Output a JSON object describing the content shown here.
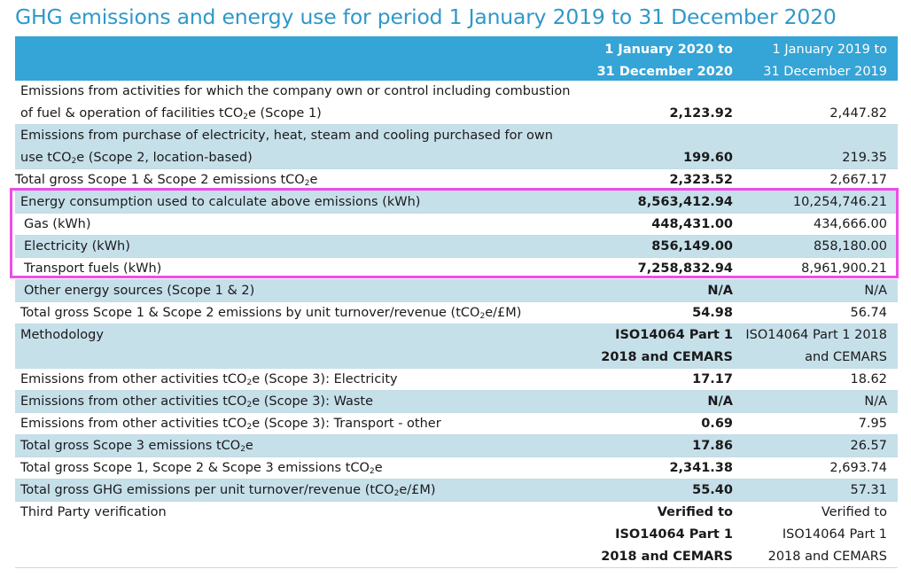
{
  "title": "GHG emissions and energy use for period 1 January 2019 to 31 December 2020",
  "columns": {
    "col2020_line1": "1 January 2020 to",
    "col2020_line2": "31 December 2020",
    "col2019_line1": "1 January 2019 to",
    "col2019_line2": "31 December 2019"
  },
  "rows": [
    {
      "line1": "Emissions from activities for which the company own or control including combustion",
      "line2_pre": "of fuel & operation of facilities tCO",
      "line2_sub": "2",
      "line2_post": "e (Scope 1)",
      "v2020": "2,123.92",
      "v2019": "2,447.82"
    },
    {
      "line1": "Emissions from purchase of electricity, heat, steam and cooling purchased for own",
      "line2_pre": "use tCO",
      "line2_sub": "2",
      "line2_post": "e (Scope 2, location-based)",
      "v2020": "199.60",
      "v2019": "219.35"
    },
    {
      "pre": "Total gross Scope 1 & Scope 2 emissions tCO",
      "sub": "2",
      "post": "e",
      "v2020": "2,323.52",
      "v2019": "2,667.17"
    },
    {
      "label": "Energy consumption used to calculate above emissions (kWh)",
      "v2020": "8,563,412.94",
      "v2019": "10,254,746.21"
    },
    {
      "label": "Gas (kWh)",
      "v2020": "448,431.00",
      "v2019": "434,666.00"
    },
    {
      "label": "Electricity (kWh)",
      "v2020": "856,149.00",
      "v2019": "858,180.00"
    },
    {
      "label": "Transport fuels (kWh)",
      "v2020": "7,258,832.94",
      "v2019": "8,961,900.21"
    },
    {
      "label": "Other energy sources (Scope 1 & 2)",
      "v2020": "N/A",
      "v2019": "N/A"
    },
    {
      "pre": "Total gross Scope 1 & Scope 2 emissions by unit turnover/revenue (tCO",
      "sub": "2",
      "post": "e/£M)",
      "v2020": "54.98",
      "v2019": "56.74"
    },
    {
      "label": "Methodology",
      "v2020_l1": "ISO14064 Part 1",
      "v2020_l2": "2018 and CEMARS",
      "v2019_l1": "ISO14064 Part 1 2018",
      "v2019_l2": "and CEMARS"
    },
    {
      "pre": "Emissions from other activities tCO",
      "sub": "2",
      "post": "e (Scope 3): Electricity",
      "v2020": "17.17",
      "v2019": "18.62"
    },
    {
      "pre": "Emissions from other activities tCO",
      "sub": "2",
      "post": "e (Scope 3): Waste",
      "v2020": "N/A",
      "v2019": "N/A"
    },
    {
      "pre": "Emissions from other activities tCO",
      "sub": "2",
      "post": "e (Scope 3): Transport - other",
      "v2020": "0.69",
      "v2019": "7.95"
    },
    {
      "pre": "Total gross Scope 3 emissions tCO",
      "sub": "2",
      "post": "e",
      "v2020": "17.86",
      "v2019": "26.57"
    },
    {
      "pre": "Total gross Scope 1, Scope 2 & Scope 3 emissions tCO",
      "sub": "2",
      "post": "e",
      "v2020": "2,341.38",
      "v2019": "2,693.74"
    },
    {
      "pre": "Total gross GHG emissions per unit turnover/revenue (tCO",
      "sub": "2",
      "post": "e/£M)",
      "v2020": "55.40",
      "v2019": "57.31"
    },
    {
      "label": "Third Party verification",
      "v2020_l1": "Verified to",
      "v2020_l2": "ISO14064 Part 1",
      "v2020_l3": "2018 and CEMARS",
      "v2019_l1": "Verified to",
      "v2019_l2": "ISO14064 Part 1",
      "v2019_l3": "2018 and CEMARS"
    }
  ],
  "highlight_color": "#ee4de8",
  "header_color": "#35a4d6",
  "band_color": "#c6e0ea"
}
